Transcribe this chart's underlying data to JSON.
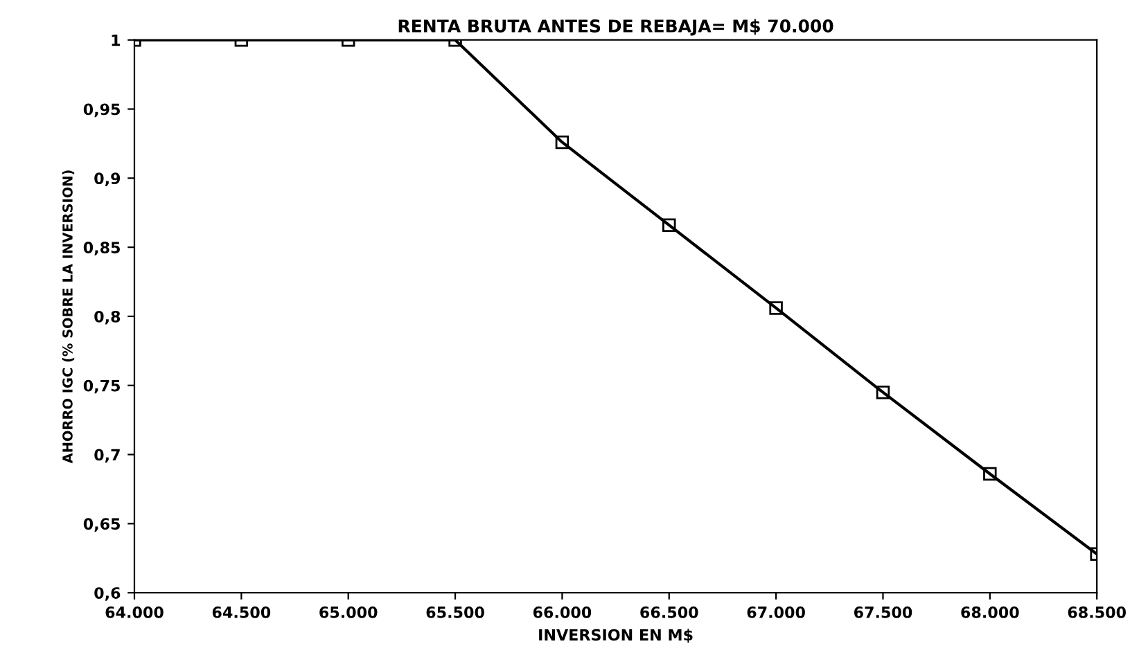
{
  "chart_data": {
    "type": "line",
    "subtitle": "RENTA BRUTA ANTES DE REBAJA= M$ 70.000",
    "xlabel": "INVERSION EN M$",
    "ylabel": "AHORRO IGC (% SOBRE LA INVERSION)",
    "x": [
      64000,
      64500,
      65000,
      65500,
      66000,
      66500,
      67000,
      67500,
      68000,
      68500
    ],
    "values": [
      1,
      1,
      1,
      1,
      0.926,
      0.866,
      0.806,
      0.745,
      0.686,
      0.628
    ],
    "color": "#000000",
    "marker": "square",
    "line_style": "solid",
    "grid": false,
    "xlim": [
      64000,
      68500
    ],
    "ylim": [
      0.6,
      1
    ],
    "xticks": [
      {
        "value": 64000,
        "label": "64.000"
      },
      {
        "value": 64500,
        "label": "64.500"
      },
      {
        "value": 65000,
        "label": "65.000"
      },
      {
        "value": 65500,
        "label": "65.500"
      },
      {
        "value": 66000,
        "label": "66.000"
      },
      {
        "value": 66500,
        "label": "66.500"
      },
      {
        "value": 67000,
        "label": "67.000"
      },
      {
        "value": 67500,
        "label": "67.500"
      },
      {
        "value": 68000,
        "label": "68.000"
      },
      {
        "value": 68500,
        "label": "68.500"
      }
    ],
    "yticks": [
      {
        "value": 0.6,
        "label": "0,6"
      },
      {
        "value": 0.65,
        "label": "0,65"
      },
      {
        "value": 0.7,
        "label": "0,7"
      },
      {
        "value": 0.75,
        "label": "0,75"
      },
      {
        "value": 0.8,
        "label": "0,8"
      },
      {
        "value": 0.85,
        "label": "0,85"
      },
      {
        "value": 0.9,
        "label": "0,9"
      },
      {
        "value": 0.95,
        "label": "0,95"
      },
      1
    ]
  }
}
